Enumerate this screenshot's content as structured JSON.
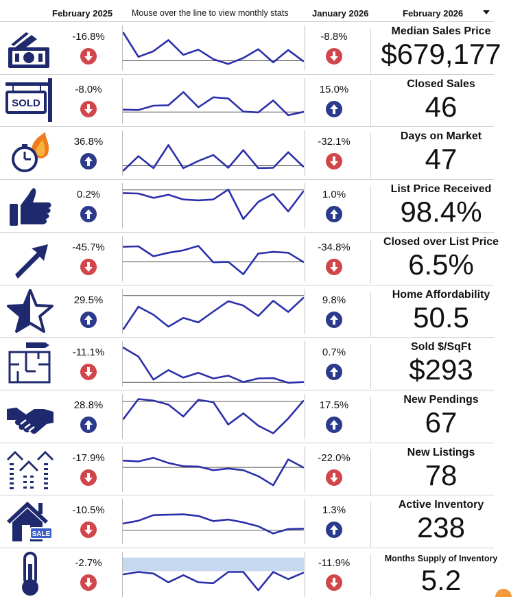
{
  "header": {
    "prev_period": "February 2025",
    "hint": "Mouse over the line to view monthly stats",
    "cur_period": "January 2026",
    "selected_month": "February 2026"
  },
  "colors": {
    "navy": "#2b3a8c",
    "down_red": "#d0464b",
    "up_blue": "#2b3a8c",
    "line": "#2b2faa",
    "band": "#c6d9f0"
  },
  "metrics": [
    {
      "icon": "cash-icon",
      "title": "Median Sales Price",
      "value": "$679,177",
      "prev_pct": "-16.8%",
      "prev_dir": "down",
      "cur_pct": "-8.8%",
      "cur_dir": "down",
      "trend": [
        0.88,
        0.28,
        0.42,
        0.7,
        0.33,
        0.46,
        0.22,
        0.1,
        0.25,
        0.47,
        0.14,
        0.45,
        0.17
      ],
      "baseline": 0.18
    },
    {
      "icon": "sold-sign-icon",
      "title": "Closed Sales",
      "value": "46",
      "prev_pct": "-8.0%",
      "prev_dir": "down",
      "cur_pct": "15.0%",
      "cur_dir": "up",
      "trend": [
        0.28,
        0.27,
        0.38,
        0.39,
        0.72,
        0.34,
        0.59,
        0.56,
        0.23,
        0.21,
        0.51,
        0.14,
        0.22
      ],
      "baseline": 0.22
    },
    {
      "icon": "stopwatch-fire-icon",
      "title": "Days on Market",
      "value": "47",
      "prev_pct": "36.8%",
      "prev_dir": "up",
      "cur_pct": "-32.1%",
      "cur_dir": "down",
      "trend": [
        0.06,
        0.42,
        0.12,
        0.7,
        0.12,
        0.3,
        0.45,
        0.13,
        0.57,
        0.12,
        0.13,
        0.52,
        0.16
      ],
      "baseline": 0.18
    },
    {
      "icon": "thumbs-up-icon",
      "title": "List Price Received",
      "value": "98.4%",
      "prev_pct": "0.2%",
      "prev_dir": "up",
      "cur_pct": "1.0%",
      "cur_dir": "up",
      "trend": [
        0.82,
        0.81,
        0.7,
        0.78,
        0.66,
        0.64,
        0.66,
        0.91,
        0.17,
        0.6,
        0.8,
        0.36,
        0.86
      ],
      "baseline": 0.9
    },
    {
      "icon": "trend-arrow-icon",
      "title": "Closed over List Price",
      "value": "6.5%",
      "prev_pct": "-45.7%",
      "prev_dir": "down",
      "cur_pct": "-34.8%",
      "cur_dir": "down",
      "trend": [
        0.8,
        0.81,
        0.56,
        0.65,
        0.71,
        0.82,
        0.41,
        0.42,
        0.11,
        0.63,
        0.67,
        0.65,
        0.42
      ],
      "baseline": 0.42
    },
    {
      "icon": "half-star-icon",
      "title": "Home Affordability",
      "value": "50.5",
      "prev_pct": "29.5%",
      "prev_dir": "up",
      "cur_pct": "9.8%",
      "cur_dir": "up",
      "trend": [
        0.06,
        0.62,
        0.42,
        0.12,
        0.34,
        0.23,
        0.5,
        0.76,
        0.65,
        0.39,
        0.77,
        0.49,
        0.84
      ],
      "baseline": 0.9
    },
    {
      "icon": "floorplan-icon",
      "title": "Sold $/SqFt",
      "value": "$293",
      "prev_pct": "-11.1%",
      "prev_dir": "down",
      "cur_pct": "0.7%",
      "cur_dir": "up",
      "trend": [
        0.9,
        0.68,
        0.1,
        0.34,
        0.15,
        0.27,
        0.13,
        0.2,
        0.04,
        0.13,
        0.14,
        0.02,
        0.04
      ],
      "baseline": 0.03
    },
    {
      "icon": "handshake-icon",
      "title": "New Pendings",
      "value": "67",
      "prev_pct": "28.8%",
      "prev_dir": "up",
      "cur_pct": "17.5%",
      "cur_dir": "up",
      "trend": [
        0.44,
        0.94,
        0.9,
        0.8,
        0.5,
        0.92,
        0.86,
        0.3,
        0.58,
        0.27,
        0.08,
        0.45,
        0.89
      ],
      "baseline": 0.88
    },
    {
      "icon": "houses-icon",
      "title": "New Listings",
      "value": "78",
      "prev_pct": "-17.9%",
      "prev_dir": "down",
      "cur_pct": "-22.0%",
      "cur_dir": "down",
      "trend": [
        0.72,
        0.7,
        0.79,
        0.66,
        0.58,
        0.57,
        0.48,
        0.52,
        0.48,
        0.33,
        0.1,
        0.75,
        0.55
      ],
      "baseline": 0.55
    },
    {
      "icon": "house-sale-icon",
      "title": "Active Inventory",
      "value": "238",
      "prev_pct": "-10.5%",
      "prev_dir": "down",
      "cur_pct": "1.3%",
      "cur_dir": "up",
      "trend": [
        0.45,
        0.52,
        0.66,
        0.67,
        0.68,
        0.64,
        0.51,
        0.55,
        0.48,
        0.38,
        0.2,
        0.31,
        0.32
      ],
      "baseline": 0.28
    },
    {
      "icon": "thermometer-icon",
      "title": "Months Supply of Inventory",
      "value": "5.2",
      "prev_pct": "-2.7%",
      "prev_dir": "down",
      "cur_pct": "-11.9%",
      "cur_dir": "down",
      "trend": [
        0.5,
        0.56,
        0.52,
        0.3,
        0.48,
        0.3,
        0.28,
        0.56,
        0.56,
        0.1,
        0.56,
        0.38,
        0.54
      ],
      "baseline": null
    }
  ]
}
